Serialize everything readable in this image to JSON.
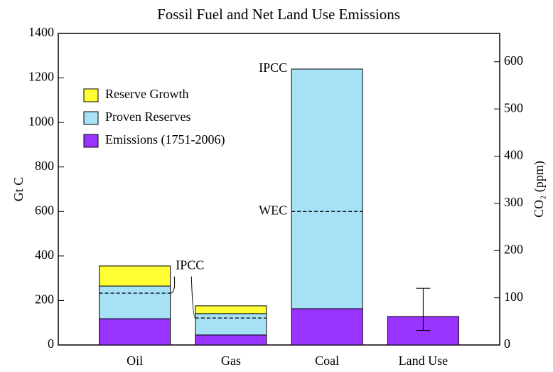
{
  "chart_data": {
    "type": "stacked-bar",
    "title": "Fossil Fuel and Net Land Use Emissions",
    "y_label": "Gt C",
    "y2_label": "CO₂ (ppm)",
    "categories": [
      "Oil",
      "Gas",
      "Coal",
      "Land Use"
    ],
    "series": [
      {
        "name": "Emissions (1751-2006)",
        "color": "#9933ff",
        "values": [
          118,
          45,
          163,
          128
        ]
      },
      {
        "name": "Proven Reserves",
        "color": "#a6e1f5",
        "values": [
          147,
          96,
          1077,
          null
        ]
      },
      {
        "name": "Reserve Growth",
        "color": "#ffff33",
        "values": [
          90,
          35,
          null,
          null
        ]
      }
    ],
    "error_bar": {
      "low": 65,
      "high": 255
    },
    "reference_lines": [
      {
        "value": 233,
        "label": "IPCC"
      },
      {
        "value": 121
      },
      {
        "value": 600,
        "label": "WEC"
      }
    ],
    "annotations": [
      "IPCC"
    ],
    "ylim": [
      0,
      1400
    ],
    "yticks": [
      0,
      200,
      400,
      600,
      800,
      1000,
      1200,
      1400
    ],
    "y2lim": [
      0,
      660
    ],
    "y2ticks": [
      0,
      100,
      200,
      300,
      400,
      500,
      600
    ],
    "legend": "upper left"
  }
}
